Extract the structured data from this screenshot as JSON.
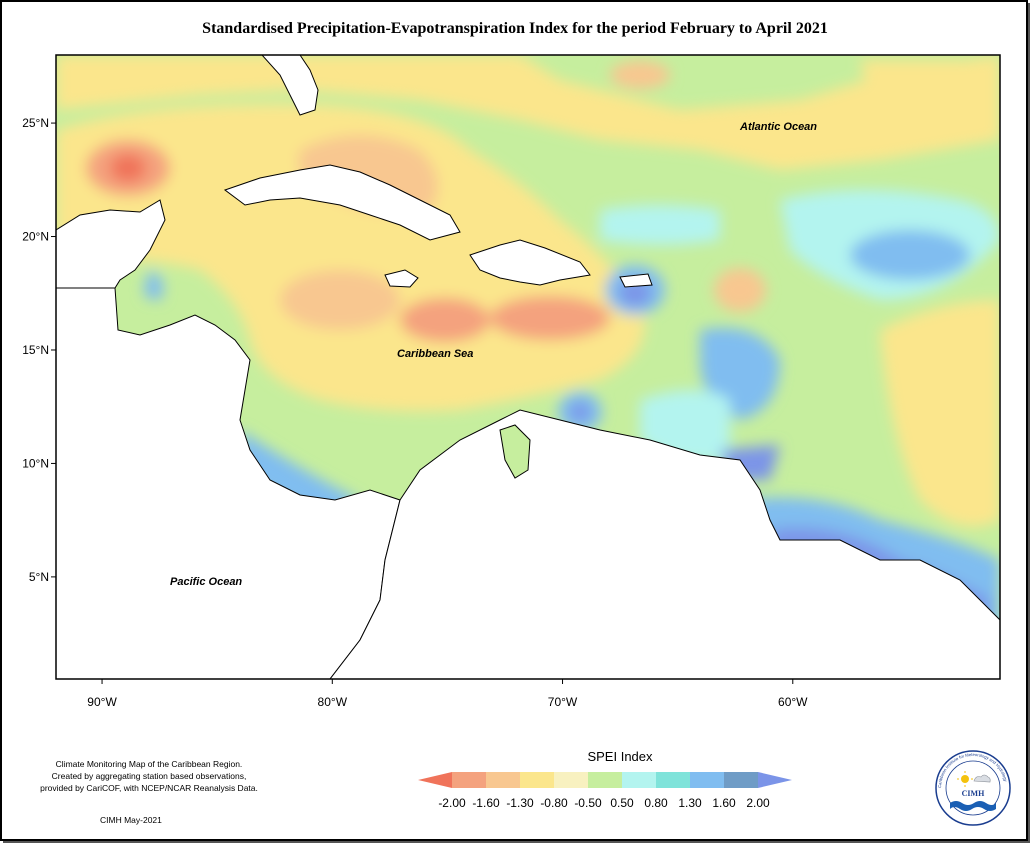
{
  "title": "Standardised Precipitation-Evapotranspiration Index for the period February to April 2021",
  "map": {
    "lat_ticks": [
      {
        "value": 25,
        "label": "25°N"
      },
      {
        "value": 20,
        "label": "20°N"
      },
      {
        "value": 15,
        "label": "15°N"
      },
      {
        "value": 10,
        "label": "10°N"
      },
      {
        "value": 5,
        "label": "5°N"
      }
    ],
    "lon_ticks": [
      {
        "value": -90,
        "label": "90°W"
      },
      {
        "value": -80,
        "label": "80°W"
      },
      {
        "value": -70,
        "label": "70°W"
      },
      {
        "value": -60,
        "label": "60°W"
      }
    ],
    "lon_range": [
      -92,
      -51
    ],
    "lat_range": [
      0.5,
      28
    ],
    "labels": {
      "atlantic": "Atlantic Ocean",
      "caribbean": "Caribbean Sea",
      "pacific": "Pacific Ocean"
    }
  },
  "legend": {
    "title": "SPEI Index",
    "breaks": [
      "-2.00",
      "-1.60",
      "-1.30",
      "-0.80",
      "-0.50",
      "0.50",
      "0.80",
      "1.30",
      "1.60",
      "2.00"
    ],
    "colors": [
      "#f0735a",
      "#f4a27e",
      "#f8c790",
      "#fbe68c",
      "#f8f1c0",
      "#c6ee9e",
      "#b3f4ef",
      "#7fe3da",
      "#80bdf0",
      "#6f9cc6",
      "#7b94e8"
    ]
  },
  "caption": {
    "line1": "Climate Monitoring Map of the Caribbean Region.",
    "line2": "Created by aggregating station based observations,",
    "line3": "provided by CariCOF, with NCEP/NCAR Reanalysis Data.",
    "credit": "CIMH May-2021"
  },
  "logo": {
    "text": "CIMH",
    "ring_text": "Caribbean Institute for Meteorology and Hydrology"
  }
}
